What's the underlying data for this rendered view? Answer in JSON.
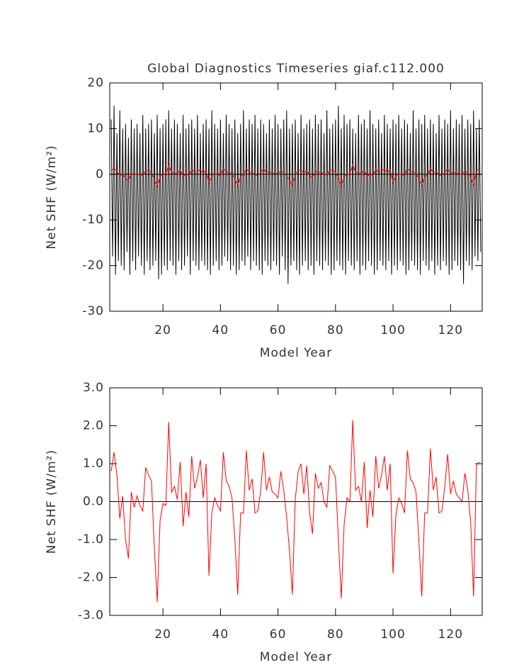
{
  "chart_data": [
    {
      "type": "line",
      "title": "Global Diagnostics Timeseries giaf.c112.000",
      "xlabel": "Model Year",
      "ylabel": "Net SHF (W/m²)",
      "xlim": [
        1.5,
        131
      ],
      "ylim": [
        -30,
        20
      ],
      "xticks": [
        20,
        40,
        60,
        80,
        100,
        120
      ],
      "yticks": [
        -30,
        -20,
        -10,
        0,
        10,
        20
      ],
      "zero_line": true,
      "series": [
        {
          "color": "#000000",
          "x": [
            2,
            2.5,
            3,
            3.5,
            4,
            4.5,
            5,
            5.5,
            6,
            6.5,
            7,
            7.5,
            8,
            8.5,
            9,
            9.5,
            10,
            10.5,
            11,
            11.5,
            12,
            12.5,
            13,
            13.5,
            14,
            14.5,
            15,
            15.5,
            16,
            16.5,
            17,
            17.5,
            18,
            18.5,
            19,
            19.5,
            20,
            20.5,
            21,
            21.5,
            22,
            22.5,
            23,
            23.5,
            24,
            24.5,
            25,
            25.5,
            26,
            26.5,
            27,
            27.5,
            28,
            28.5,
            29,
            29.5,
            30,
            30.5,
            31,
            31.5,
            32,
            32.5,
            33,
            33.5,
            34,
            34.5,
            35,
            35.5,
            36,
            36.5,
            37,
            37.5,
            38,
            38.5,
            39,
            39.5,
            40,
            40.5,
            41,
            41.5,
            42,
            42.5,
            43,
            43.5,
            44,
            44.5,
            45,
            45.5,
            46,
            46.5,
            47,
            47.5,
            48,
            48.5,
            49,
            49.5,
            50,
            50.5,
            51,
            51.5,
            52,
            52.5,
            53,
            53.5,
            54,
            54.5,
            55,
            55.5,
            56,
            56.5,
            57,
            57.5,
            58,
            58.5,
            59,
            59.5,
            60,
            60.5,
            61,
            61.5,
            62,
            62.5,
            63,
            63.5,
            64,
            64.5,
            65,
            65.5,
            66,
            66.5,
            67,
            67.5,
            68,
            68.5,
            69,
            69.5,
            70,
            70.5,
            71,
            71.5,
            72,
            72.5,
            73,
            73.5,
            74,
            74.5,
            75,
            75.5,
            76,
            76.5,
            77,
            77.5,
            78,
            78.5,
            79,
            79.5,
            80,
            80.5,
            81,
            81.5,
            82,
            82.5,
            83,
            83.5,
            84,
            84.5,
            85,
            85.5,
            86,
            86.5,
            87,
            87.5,
            88,
            88.5,
            89,
            89.5,
            90,
            90.5,
            91,
            91.5,
            92,
            92.5,
            93,
            93.5,
            94,
            94.5,
            95,
            95.5,
            96,
            96.5,
            97,
            97.5,
            98,
            98.5,
            99,
            99.5,
            100,
            100.5,
            101,
            101.5,
            102,
            102.5,
            103,
            103.5,
            104,
            104.5,
            105,
            105.5,
            106,
            106.5,
            107,
            107.5,
            108,
            108.5,
            109,
            109.5,
            110,
            110.5,
            111,
            111.5,
            112,
            112.5,
            113,
            113.5,
            114,
            114.5,
            115,
            115.5,
            116,
            116.5,
            117,
            117.5,
            118,
            118.5,
            119,
            119.5,
            120,
            120.5,
            121,
            121.5,
            122,
            122.5,
            123,
            123.5,
            124,
            124.5,
            125,
            125.5,
            126,
            126.5,
            127,
            127.5,
            128,
            128.5,
            129,
            129.5,
            130,
            130.5
          ],
          "values": [
            12,
            -18,
            15,
            -22,
            9,
            -19,
            14,
            -20,
            10,
            -21,
            11,
            -17,
            8,
            -22,
            12,
            -19,
            10,
            -21,
            11,
            -18,
            9,
            -20,
            13,
            -22,
            10,
            -19,
            11,
            -21,
            12,
            -20,
            9,
            -19,
            13,
            -23,
            10,
            -22,
            11,
            -20,
            12,
            -21,
            14,
            -19,
            10,
            -20,
            12,
            -22,
            11,
            -19,
            9,
            -21,
            13,
            -20,
            10,
            -18,
            11,
            -22,
            12,
            -19,
            10,
            -20,
            13,
            -21,
            9,
            -19,
            11,
            -20,
            12,
            -21,
            10,
            -22,
            14,
            -20,
            11,
            -19,
            10,
            -21,
            12,
            -20,
            9,
            -18,
            13,
            -19,
            11,
            -21,
            10,
            -20,
            12,
            -22,
            9,
            -21,
            11,
            -19,
            14,
            -20,
            10,
            -18,
            12,
            -21,
            11,
            -19,
            13,
            -20,
            10,
            -21,
            12,
            -22,
            11,
            -19,
            9,
            -20,
            12,
            -21,
            10,
            -19,
            13,
            -20,
            11,
            -22,
            10,
            -18,
            12,
            -21,
            14,
            -24,
            10,
            -20,
            11,
            -19,
            12,
            -21,
            9,
            -22,
            13,
            -20,
            10,
            -19,
            11,
            -21,
            12,
            -20,
            10,
            -22,
            13,
            -19,
            11,
            -20,
            12,
            -21,
            9,
            -19,
            14,
            -20,
            10,
            -22,
            11,
            -21,
            12,
            -19,
            15,
            -20,
            10,
            -21,
            13,
            -22,
            11,
            -19,
            12,
            -20,
            10,
            -21,
            9,
            -19,
            13,
            -22,
            11,
            -20,
            12,
            -21,
            10,
            -19,
            14,
            -20,
            11,
            -22,
            10,
            -21,
            12,
            -19,
            9,
            -20,
            13,
            -21,
            11,
            -19,
            10,
            -22,
            12,
            -20,
            11,
            -21,
            13,
            -19,
            10,
            -20,
            12,
            -22,
            11,
            -21,
            9,
            -19,
            14,
            -20,
            10,
            -21,
            12,
            -22,
            11,
            -19,
            13,
            -20,
            10,
            -21,
            12,
            -19,
            11,
            -22,
            9,
            -20,
            13,
            -21,
            10,
            -19,
            12,
            -20,
            11,
            -22,
            14,
            -21,
            10,
            -19,
            12,
            -20,
            11,
            -21,
            13,
            -24,
            10,
            -19,
            12,
            -20,
            11,
            -21,
            14,
            -18,
            10,
            -19,
            12,
            -17
          ]
        },
        {
          "color": "#ff0000",
          "x": [
            2,
            3,
            4,
            5,
            6,
            7,
            8,
            9,
            10,
            11,
            12,
            13,
            14,
            15,
            16,
            17,
            18,
            19,
            20,
            21,
            22,
            23,
            24,
            25,
            26,
            27,
            28,
            29,
            30,
            31,
            32,
            33,
            34,
            35,
            36,
            37,
            38,
            39,
            40,
            41,
            42,
            43,
            44,
            45,
            46,
            47,
            48,
            49,
            50,
            51,
            52,
            53,
            54,
            55,
            56,
            57,
            58,
            59,
            60,
            61,
            62,
            63,
            64,
            65,
            66,
            67,
            68,
            69,
            70,
            71,
            72,
            73,
            74,
            75,
            76,
            77,
            78,
            79,
            80,
            81,
            82,
            83,
            84,
            85,
            86,
            87,
            88,
            89,
            90,
            91,
            92,
            93,
            94,
            95,
            96,
            97,
            98,
            99,
            100,
            101,
            102,
            103,
            104,
            105,
            106,
            107,
            108,
            109,
            110,
            111,
            112,
            113,
            114,
            115,
            116,
            117,
            118,
            119,
            120,
            121,
            122,
            123,
            124,
            125,
            126,
            127,
            128,
            129,
            130
          ],
          "values": [
            0.8,
            1.3,
            0.7,
            -0.45,
            0.15,
            -1.0,
            -1.5,
            0.25,
            -0.15,
            0.15,
            -0.1,
            -0.25,
            0.9,
            0.7,
            0.55,
            -1.2,
            -2.65,
            -0.5,
            -0.05,
            -0.1,
            2.1,
            0.25,
            0.4,
            0.05,
            1.05,
            -0.65,
            0.25,
            -0.4,
            1.2,
            0.35,
            0.65,
            1.1,
            0.1,
            1.0,
            -1.95,
            -0.3,
            0.1,
            -0.1,
            -0.25,
            1.3,
            0.55,
            0.4,
            0.1,
            -1.0,
            -2.45,
            -0.3,
            -0.3,
            1.35,
            0.3,
            0.6,
            -0.3,
            -0.25,
            0.3,
            1.3,
            0.3,
            0.65,
            0.25,
            0.2,
            0.1,
            0.8,
            0.3,
            -0.4,
            -1.3,
            -2.45,
            0.05,
            0.8,
            1.0,
            0.2,
            0.95,
            -0.3,
            -0.85,
            0.75,
            0.35,
            0.5,
            0.0,
            -0.15,
            0.95,
            0.8,
            0.65,
            -1.0,
            -2.55,
            -0.6,
            0.1,
            0.0,
            2.15,
            0.3,
            0.4,
            0.0,
            1.05,
            -0.7,
            0.3,
            -0.4,
            1.2,
            0.35,
            0.7,
            1.2,
            0.3,
            1.0,
            -1.9,
            -0.35,
            0.1,
            -0.05,
            -0.3,
            1.35,
            0.6,
            0.5,
            0.25,
            -1.05,
            -2.5,
            -0.3,
            -0.3,
            1.4,
            0.3,
            0.65,
            -0.3,
            -0.25,
            0.4,
            1.25,
            0.2,
            0.55,
            0.2,
            0.1,
            0.0,
            0.75,
            0.3,
            -0.55,
            -2.5,
            0.95,
            1.05
          ]
        }
      ]
    },
    {
      "type": "line",
      "xlabel": "Model Year",
      "ylabel": "Net SHF (W/m²)",
      "xlim": [
        1.5,
        131
      ],
      "ylim": [
        -3,
        3
      ],
      "xticks": [
        20,
        40,
        60,
        80,
        100,
        120
      ],
      "yticks": [
        {
          "value": -3,
          "label": "-3.0"
        },
        {
          "value": -2,
          "label": "-2.0"
        },
        {
          "value": -1,
          "label": "-1.0"
        },
        {
          "value": 0,
          "label": "0.0"
        },
        {
          "value": 1,
          "label": "1.0"
        },
        {
          "value": 2,
          "label": "2.0"
        },
        {
          "value": 3,
          "label": "3.0"
        }
      ],
      "zero_line": true,
      "series": [
        {
          "color": "#ff0000",
          "x": [
            2,
            3,
            4,
            5,
            6,
            7,
            8,
            9,
            10,
            11,
            12,
            13,
            14,
            15,
            16,
            17,
            18,
            19,
            20,
            21,
            22,
            23,
            24,
            25,
            26,
            27,
            28,
            29,
            30,
            31,
            32,
            33,
            34,
            35,
            36,
            37,
            38,
            39,
            40,
            41,
            42,
            43,
            44,
            45,
            46,
            47,
            48,
            49,
            50,
            51,
            52,
            53,
            54,
            55,
            56,
            57,
            58,
            59,
            60,
            61,
            62,
            63,
            64,
            65,
            66,
            67,
            68,
            69,
            70,
            71,
            72,
            73,
            74,
            75,
            76,
            77,
            78,
            79,
            80,
            81,
            82,
            83,
            84,
            85,
            86,
            87,
            88,
            89,
            90,
            91,
            92,
            93,
            94,
            95,
            96,
            97,
            98,
            99,
            100,
            101,
            102,
            103,
            104,
            105,
            106,
            107,
            108,
            109,
            110,
            111,
            112,
            113,
            114,
            115,
            116,
            117,
            118,
            119,
            120,
            121,
            122,
            123,
            124,
            125,
            126,
            127,
            128,
            129,
            130
          ],
          "values": [
            0.8,
            1.3,
            0.7,
            -0.45,
            0.15,
            -1.0,
            -1.5,
            0.25,
            -0.15,
            0.15,
            -0.1,
            -0.25,
            0.9,
            0.7,
            0.55,
            -1.2,
            -2.65,
            -0.5,
            -0.05,
            -0.1,
            2.1,
            0.25,
            0.4,
            0.05,
            1.05,
            -0.65,
            0.25,
            -0.4,
            1.2,
            0.35,
            0.65,
            1.1,
            0.1,
            1.0,
            -1.95,
            -0.3,
            0.1,
            -0.1,
            -0.25,
            1.3,
            0.55,
            0.4,
            0.1,
            -1.0,
            -2.45,
            -0.3,
            -0.3,
            1.35,
            0.3,
            0.6,
            -0.3,
            -0.25,
            0.3,
            1.3,
            0.3,
            0.65,
            0.25,
            0.2,
            0.1,
            0.8,
            0.3,
            -0.4,
            -1.3,
            -2.45,
            0.05,
            0.8,
            1.0,
            0.2,
            0.95,
            -0.3,
            -0.85,
            0.75,
            0.35,
            0.5,
            0.0,
            -0.15,
            0.95,
            0.8,
            0.65,
            -1.0,
            -2.55,
            -0.6,
            0.1,
            0.0,
            2.15,
            0.3,
            0.4,
            0.0,
            1.05,
            -0.7,
            0.3,
            -0.4,
            1.2,
            0.35,
            0.7,
            1.2,
            0.3,
            1.0,
            -1.9,
            -0.35,
            0.1,
            -0.05,
            -0.3,
            1.35,
            0.6,
            0.5,
            0.25,
            -1.05,
            -2.5,
            -0.3,
            -0.3,
            1.4,
            0.3,
            0.65,
            -0.3,
            -0.25,
            0.4,
            1.25,
            0.2,
            0.55,
            0.2,
            0.1,
            0.0,
            0.75,
            0.3,
            -0.55,
            -2.5,
            0.95,
            1.05
          ]
        }
      ]
    }
  ]
}
